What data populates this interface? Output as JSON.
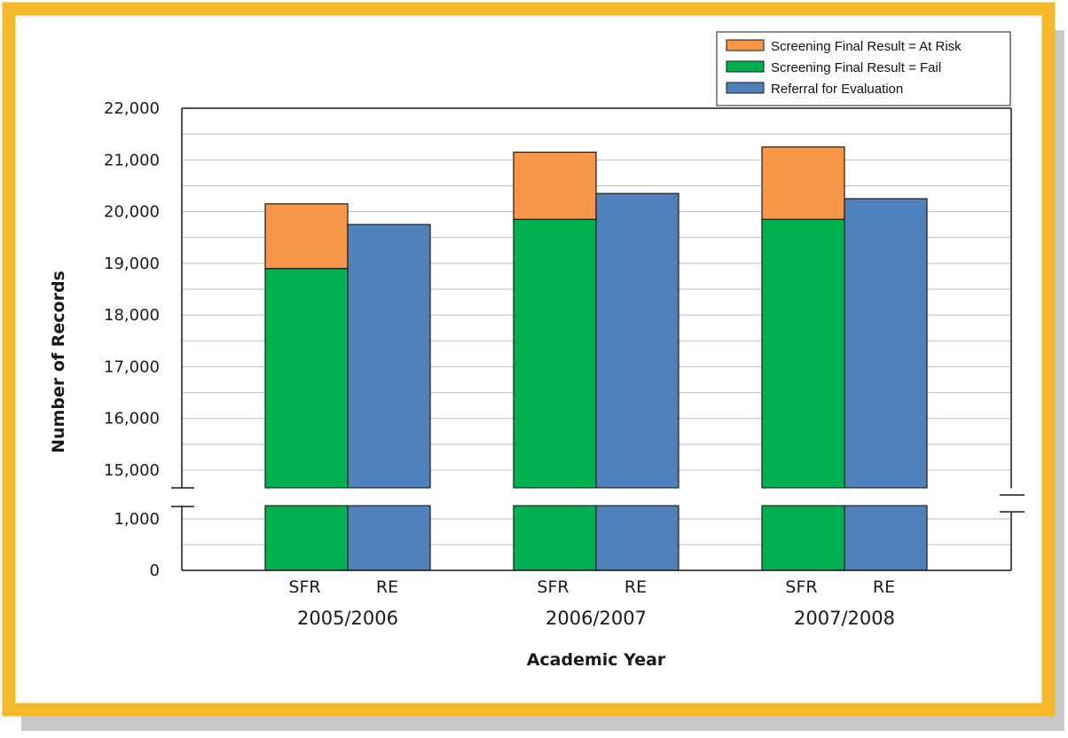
{
  "colors": {
    "frame": "#F5B829",
    "shadow": "#C8C8C8",
    "at_risk": "#F79646",
    "fail": "#00B050",
    "referral": "#4F81BD",
    "grid": "#BDBDBD",
    "outline": "#1A1A1A"
  },
  "chart_data": {
    "type": "bar",
    "stacked_within_group": true,
    "axis_break": {
      "from": 1000,
      "to": 15000
    },
    "xlabel": "Academic Year",
    "ylabel": "Number of Records",
    "ylim": [
      0,
      22000
    ],
    "yticks": [
      {
        "value": 0,
        "label": "0"
      },
      {
        "value": 1000,
        "label": "1,000"
      },
      {
        "value": 15000,
        "label": "15,000"
      },
      {
        "value": 16000,
        "label": "16,000"
      },
      {
        "value": 17000,
        "label": "17,000"
      },
      {
        "value": 18000,
        "label": "18,000"
      },
      {
        "value": 19000,
        "label": "19,000"
      },
      {
        "value": 20000,
        "label": "20,000"
      },
      {
        "value": 21000,
        "label": "21,000"
      },
      {
        "value": 22000,
        "label": "22,000"
      }
    ],
    "grid": true,
    "legend_position": "top-right",
    "legend": [
      {
        "label": "Screening Final Result = At Risk",
        "color_key": "at_risk"
      },
      {
        "label": "Screening Final Result = Fail",
        "color_key": "fail"
      },
      {
        "label": "Referral for Evaluation",
        "color_key": "referral"
      }
    ],
    "groups": [
      {
        "label": "2005/2006",
        "bars": [
          {
            "label": "SFR",
            "segments": [
              {
                "series": "Screening Final Result = Fail",
                "color_key": "fail",
                "value": 18900
              },
              {
                "series": "Screening Final Result = At Risk",
                "color_key": "at_risk",
                "value": 1250
              }
            ]
          },
          {
            "label": "RE",
            "segments": [
              {
                "series": "Referral for Evaluation",
                "color_key": "referral",
                "value": 19750
              }
            ]
          }
        ]
      },
      {
        "label": "2006/2007",
        "bars": [
          {
            "label": "SFR",
            "segments": [
              {
                "series": "Screening Final Result = Fail",
                "color_key": "fail",
                "value": 19850
              },
              {
                "series": "Screening Final Result = At Risk",
                "color_key": "at_risk",
                "value": 1300
              }
            ]
          },
          {
            "label": "RE",
            "segments": [
              {
                "series": "Referral for Evaluation",
                "color_key": "referral",
                "value": 20350
              }
            ]
          }
        ]
      },
      {
        "label": "2007/2008",
        "bars": [
          {
            "label": "SFR",
            "segments": [
              {
                "series": "Screening Final Result = Fail",
                "color_key": "fail",
                "value": 19850
              },
              {
                "series": "Screening Final Result = At Risk",
                "color_key": "at_risk",
                "value": 1400
              }
            ]
          },
          {
            "label": "RE",
            "segments": [
              {
                "series": "Referral for Evaluation",
                "color_key": "referral",
                "value": 20250
              }
            ]
          }
        ]
      }
    ]
  }
}
